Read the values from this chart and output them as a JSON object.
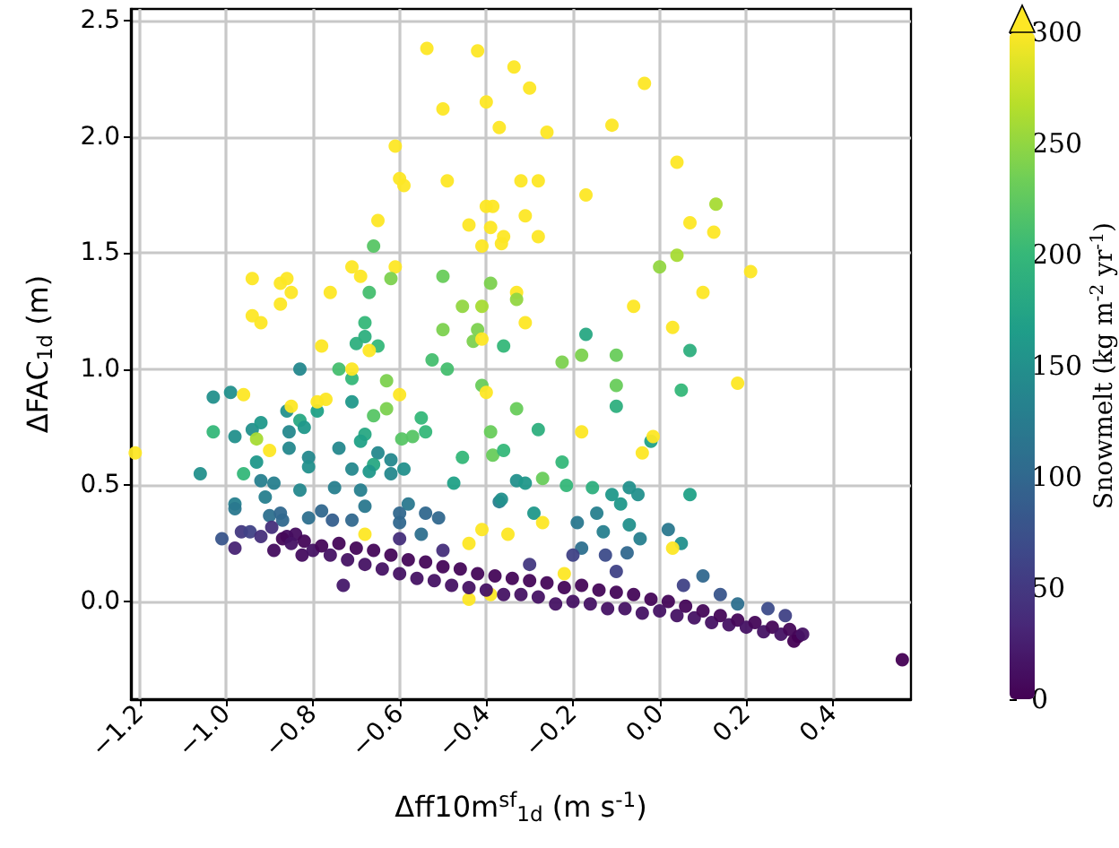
{
  "chart_data": {
    "type": "scatter",
    "xlabel": "Δff10m$^{sf}$$_{1d}$ (m s$^{-1}$)",
    "ylabel": "ΔFAC$_{1d}$ (m)",
    "clabel": "Snowmelt (kg m$^{-2}$ yr$^{-1}$)",
    "xlim": [
      -1.22,
      0.58
    ],
    "xticks": [
      {
        "value": -1.2,
        "label": "−1.2"
      },
      {
        "value": -1.0,
        "label": "−1.0"
      },
      {
        "value": -0.8,
        "label": "−0.8"
      },
      {
        "value": -0.6,
        "label": "−0.6"
      },
      {
        "value": -0.4,
        "label": "−0.4"
      },
      {
        "value": -0.2,
        "label": "−0.2"
      },
      {
        "value": 0,
        "label": "0.0"
      },
      {
        "value": 0.2,
        "label": "0.2"
      },
      {
        "value": 0.4,
        "label": "0.4"
      }
    ],
    "ylim": [
      -0.42,
      2.55
    ],
    "yticks": [
      {
        "value": 0,
        "label": "0.0"
      },
      {
        "value": 0.5,
        "label": "0.5"
      },
      {
        "value": 1.0,
        "label": "1.0"
      },
      {
        "value": 1.5,
        "label": "1.5"
      },
      {
        "value": 2.0,
        "label": "2.0"
      },
      {
        "value": 2.5,
        "label": "2.5"
      }
    ],
    "clim": [
      0,
      300
    ],
    "cticks": [
      0,
      50,
      100,
      150,
      200,
      250,
      300
    ],
    "grid": true,
    "marker": "circle",
    "x": [
      -0.537,
      -0.42,
      -0.336,
      -0.5,
      -0.4,
      -0.37,
      -0.61,
      -0.6,
      -0.59,
      -0.49,
      -0.32,
      -0.65,
      -0.66,
      -0.44,
      -0.4,
      -0.385,
      -0.39,
      -0.36,
      -0.41,
      -0.365,
      -0.94,
      -0.875,
      -0.86,
      -0.85,
      -0.875,
      -0.94,
      -0.92,
      -0.76,
      -0.71,
      -0.69,
      -0.61,
      -0.62,
      -0.67,
      -0.5,
      -0.39,
      -0.455,
      -0.41,
      -0.33,
      -0.33,
      -0.68,
      -0.68,
      -0.7,
      -0.65,
      -0.78,
      -0.67,
      -0.5,
      -0.42,
      -0.43,
      -0.41,
      -0.36,
      -0.3,
      -0.26,
      -0.035,
      -0.11,
      0.04,
      -0.28,
      -0.17,
      0.13,
      0.07,
      0.125,
      -0.31,
      -0.28,
      0,
      0.04,
      0.21,
      0.1,
      -0.06,
      -0.31,
      0.03,
      -0.17,
      0.07,
      -0.18,
      -0.1,
      -1.21,
      -1.06,
      -1.03,
      -0.99,
      -0.96,
      -1.03,
      -0.98,
      -0.94,
      -0.93,
      -0.92,
      -0.9,
      -0.93,
      -0.96,
      -0.86,
      -0.85,
      -0.83,
      -0.82,
      -0.855,
      -0.855,
      -0.83,
      -0.81,
      -0.81,
      -0.79,
      -0.79,
      -0.77,
      -0.74,
      -0.71,
      -0.71,
      -0.71,
      -0.66,
      -0.63,
      -0.63,
      -0.6,
      -0.68,
      -0.69,
      -0.74,
      -0.65,
      -0.66,
      -0.67,
      -0.71,
      -0.62,
      -0.595,
      -0.57,
      -0.54,
      -0.55,
      -0.59,
      -0.62,
      -0.455,
      -0.475,
      -0.49,
      -0.525,
      -0.41,
      -0.4,
      -0.39,
      -0.385,
      -0.36,
      -0.33,
      -0.33,
      -0.37,
      -0.92,
      -0.89,
      -0.91,
      -0.83,
      -0.98,
      -0.98,
      -0.9,
      -0.875,
      -0.87,
      -0.81,
      -0.78,
      -0.75,
      -0.69,
      -0.68,
      -0.755,
      -0.71,
      -0.6,
      -0.6,
      -0.58,
      -0.54,
      -0.51,
      -0.55,
      -1.01,
      -0.98,
      -0.965,
      -0.945,
      -0.92,
      -0.895,
      -0.89,
      -0.86,
      -0.84,
      -0.825,
      -0.68,
      -0.73,
      -0.44,
      -0.41,
      -0.35,
      -0.44,
      -0.39,
      -0.225,
      -0.1,
      0.05,
      0.18,
      -0.1,
      -0.28,
      -0.18,
      -0.225,
      -0.27,
      -0.31,
      -0.215,
      -0.155,
      -0.11,
      -0.07,
      -0.05,
      -0.09,
      0.07,
      -0.02,
      -0.015,
      -0.04,
      -0.365,
      -0.29,
      -0.27,
      -0.19,
      -0.145,
      -0.07,
      -0.13,
      0.02,
      0.05,
      0.03,
      -0.045,
      -0.075,
      -0.18,
      -0.125,
      -0.22,
      0.1,
      0.14,
      0.055,
      0.18,
      0.25,
      0.29,
      0.32,
      0.31,
      0.56,
      -0.6,
      -0.5,
      -0.3,
      -0.1,
      -0.2,
      -0.87,
      -0.85,
      -0.82,
      -0.8,
      -0.78,
      -0.76,
      -0.74,
      -0.72,
      -0.7,
      -0.68,
      -0.66,
      -0.64,
      -0.62,
      -0.6,
      -0.58,
      -0.56,
      -0.54,
      -0.52,
      -0.5,
      -0.48,
      -0.46,
      -0.44,
      -0.42,
      -0.4,
      -0.38,
      -0.36,
      -0.34,
      -0.32,
      -0.3,
      -0.28,
      -0.26,
      -0.24,
      -0.22,
      -0.2,
      -0.18,
      -0.16,
      -0.14,
      -0.12,
      -0.1,
      -0.08,
      -0.06,
      -0.04,
      -0.02,
      0,
      0.02,
      0.04,
      0.06,
      0.08,
      0.1,
      0.12,
      0.14,
      0.16,
      0.18,
      0.2,
      0.22,
      0.24,
      0.26,
      0.28,
      0.3,
      0.33
    ],
    "values": [
      2.38,
      2.37,
      2.3,
      2.12,
      2.15,
      2.04,
      1.96,
      1.82,
      1.79,
      1.81,
      1.81,
      1.64,
      1.53,
      1.62,
      1.7,
      1.7,
      1.61,
      1.57,
      1.53,
      1.54,
      1.39,
      1.37,
      1.39,
      1.33,
      1.28,
      1.23,
      1.2,
      1.33,
      1.44,
      1.4,
      1.44,
      1.39,
      1.33,
      1.4,
      1.37,
      1.27,
      1.27,
      1.33,
      1.3,
      1.2,
      1.14,
      1.11,
      1.1,
      1.1,
      1.08,
      1.17,
      1.17,
      1.12,
      1.13,
      1.1,
      2.21,
      2.02,
      2.23,
      2.05,
      1.89,
      1.81,
      1.75,
      1.71,
      1.63,
      1.59,
      1.66,
      1.57,
      1.44,
      1.49,
      1.42,
      1.33,
      1.27,
      1.2,
      1.18,
      1.15,
      1.08,
      1.06,
      1.06,
      0.64,
      0.55,
      0.88,
      0.9,
      0.89,
      0.73,
      0.71,
      0.74,
      0.7,
      0.77,
      0.65,
      0.6,
      0.55,
      0.82,
      0.84,
      0.78,
      0.75,
      0.73,
      0.66,
      1.0,
      0.62,
      0.58,
      0.82,
      0.86,
      0.87,
      1.0,
      0.96,
      1.0,
      0.86,
      0.8,
      0.95,
      0.83,
      0.89,
      0.72,
      0.69,
      0.66,
      0.64,
      0.59,
      0.56,
      0.57,
      0.61,
      0.7,
      0.71,
      0.73,
      0.79,
      0.57,
      0.55,
      0.62,
      0.51,
      1.0,
      1.04,
      0.93,
      0.9,
      0.73,
      0.63,
      0.65,
      0.83,
      0.52,
      0.43,
      0.52,
      0.51,
      0.45,
      0.48,
      0.42,
      0.4,
      0.37,
      0.38,
      0.35,
      0.36,
      0.39,
      0.49,
      0.48,
      0.41,
      0.35,
      0.35,
      0.38,
      0.34,
      0.42,
      0.38,
      0.36,
      0.29,
      0.27,
      0.23,
      0.3,
      0.3,
      0.28,
      0.32,
      0.22,
      0.28,
      0.29,
      0.2,
      0.29,
      0.07,
      0.25,
      0.31,
      0.29,
      0.01,
      0.03,
      1.03,
      0.93,
      0.91,
      0.94,
      0.84,
      0.74,
      0.73,
      0.6,
      0.53,
      0.51,
      0.5,
      0.49,
      0.46,
      0.49,
      0.46,
      0.42,
      0.46,
      0.69,
      0.71,
      0.64,
      0.44,
      0.38,
      0.34,
      0.34,
      0.38,
      0.33,
      0.3,
      0.31,
      0.25,
      0.23,
      0.27,
      0.21,
      0.23,
      0.2,
      0.12,
      0.11,
      0.03,
      0.07,
      -0.01,
      -0.03,
      -0.06,
      -0.15,
      -0.17,
      -0.25,
      0.27,
      0.22,
      0.16,
      0.13,
      0.2,
      0.27,
      0.25,
      0.26,
      0.22,
      0.24,
      0.2,
      0.25,
      0.18,
      0.23,
      0.16,
      0.22,
      0.14,
      0.2,
      0.12,
      0.18,
      0.1,
      0.17,
      0.09,
      0.15,
      0.07,
      0.14,
      0.06,
      0.12,
      0.05,
      0.11,
      0.03,
      0.1,
      0.03,
      0.09,
      0.02,
      0.08,
      -0.01,
      0.06,
      0.0,
      0.07,
      -0.01,
      0.05,
      -0.03,
      0.04,
      -0.03,
      0.03,
      -0.05,
      0.01,
      -0.04,
      0.0,
      -0.06,
      -0.02,
      -0.07,
      -0.04,
      -0.09,
      -0.06,
      -0.1,
      -0.08,
      -0.11,
      -0.09,
      -0.13,
      -0.11,
      -0.14,
      -0.12,
      -0.14
    ],
    "cvalues": [
      300,
      300,
      300,
      300,
      300,
      300,
      300,
      300,
      300,
      300,
      300,
      300,
      220,
      300,
      300,
      300,
      300,
      300,
      300,
      300,
      300,
      300,
      300,
      300,
      300,
      300,
      300,
      300,
      300,
      300,
      300,
      240,
      210,
      230,
      240,
      250,
      260,
      300,
      250,
      200,
      190,
      190,
      200,
      300,
      300,
      240,
      240,
      240,
      300,
      200,
      300,
      300,
      300,
      300,
      300,
      300,
      300,
      260,
      300,
      300,
      300,
      300,
      250,
      260,
      300,
      300,
      300,
      300,
      300,
      180,
      190,
      240,
      230,
      300,
      150,
      150,
      150,
      300,
      200,
      150,
      150,
      260,
      160,
      300,
      160,
      200,
      150,
      300,
      180,
      160,
      140,
      140,
      140,
      140,
      150,
      170,
      300,
      300,
      210,
      200,
      300,
      160,
      220,
      240,
      240,
      300,
      180,
      170,
      140,
      140,
      180,
      160,
      140,
      140,
      220,
      220,
      200,
      200,
      150,
      140,
      200,
      170,
      210,
      210,
      230,
      300,
      230,
      230,
      200,
      230,
      150,
      130,
      130,
      130,
      130,
      140,
      130,
      120,
      110,
      100,
      100,
      110,
      100,
      130,
      130,
      120,
      90,
      100,
      100,
      100,
      120,
      100,
      100,
      110,
      80,
      30,
      50,
      60,
      40,
      40,
      10,
      10,
      10,
      10,
      300,
      20,
      300,
      300,
      300,
      300,
      300,
      240,
      230,
      200,
      300,
      190,
      190,
      300,
      200,
      230,
      160,
      200,
      190,
      160,
      150,
      150,
      160,
      170,
      170,
      300,
      300,
      150,
      160,
      300,
      120,
      130,
      150,
      130,
      120,
      150,
      300,
      130,
      100,
      110,
      70,
      300,
      100,
      80,
      60,
      110,
      70,
      60,
      0,
      0,
      0,
      40,
      40,
      50,
      60,
      60,
      5,
      15,
      5,
      15,
      5,
      15,
      5,
      15,
      5,
      15,
      5,
      15,
      5,
      15,
      5,
      15,
      5,
      15,
      5,
      15,
      5,
      15,
      5,
      15,
      5,
      15,
      5,
      15,
      5,
      15,
      5,
      15,
      5,
      15,
      5,
      15,
      5,
      15,
      5,
      15,
      5,
      15,
      5,
      15,
      5,
      15,
      5,
      15,
      5,
      15,
      5,
      15,
      5,
      15,
      5,
      15,
      5,
      15,
      5,
      15
    ]
  }
}
